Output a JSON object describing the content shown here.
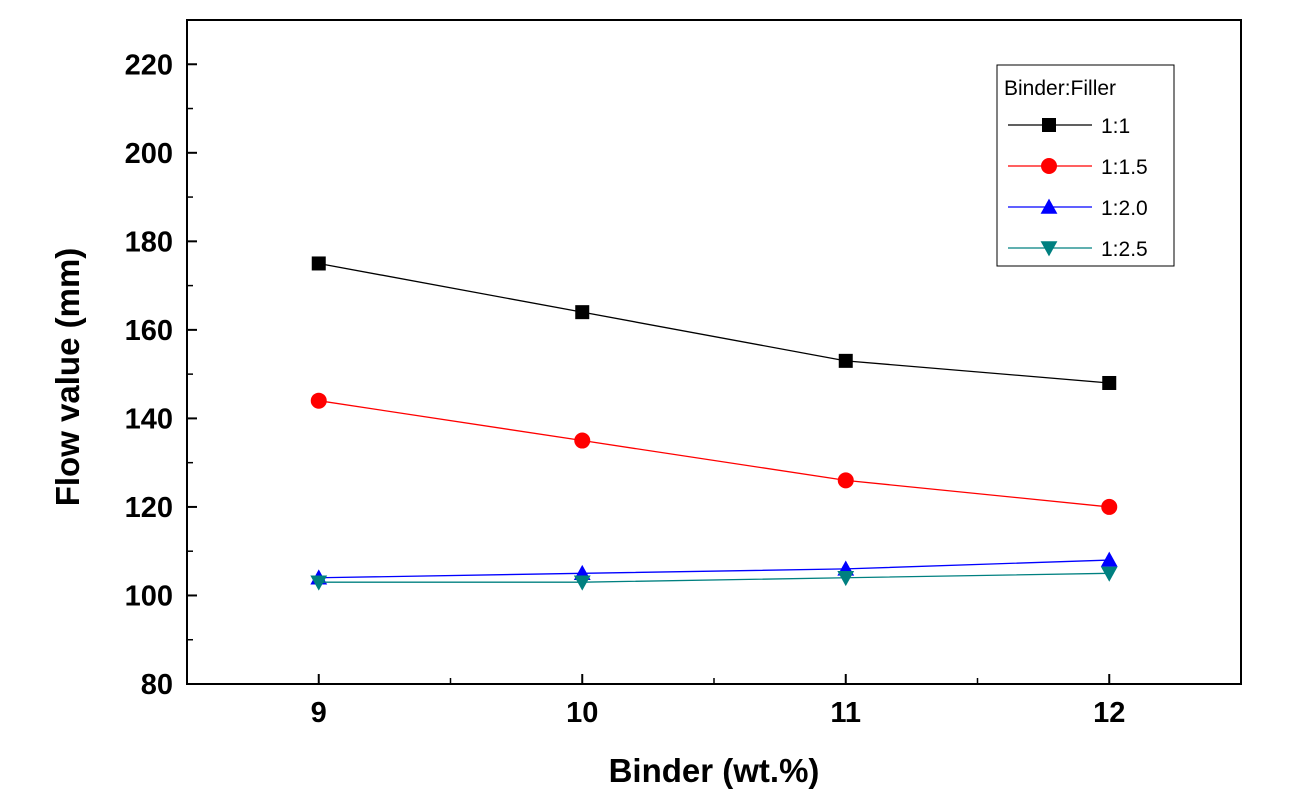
{
  "chart_data": {
    "type": "line",
    "title": "",
    "xlabel": "Binder (wt.%)",
    "ylabel": "Flow value (mm)",
    "x": [
      9,
      10,
      11,
      12
    ],
    "xlim": [
      8.5,
      12.5
    ],
    "ylim": [
      80,
      230
    ],
    "xticks": [
      9,
      10,
      11,
      12
    ],
    "yticks": [
      80,
      100,
      120,
      140,
      160,
      180,
      200,
      220
    ],
    "grid": false,
    "legend": {
      "title": "Binder:Filler",
      "position": "top-right"
    },
    "series": [
      {
        "name": "1:1",
        "marker": "square",
        "color": "#000000",
        "values": [
          175,
          164,
          153,
          148
        ]
      },
      {
        "name": "1:1.5",
        "marker": "circle",
        "color": "#ff0000",
        "values": [
          144,
          135,
          126,
          120
        ]
      },
      {
        "name": "1:2.0",
        "marker": "triangle-up",
        "color": "#0000ff",
        "values": [
          104,
          105,
          106,
          108
        ]
      },
      {
        "name": "1:2.5",
        "marker": "triangle-down",
        "color": "#008080",
        "values": [
          103,
          103,
          104,
          105
        ]
      }
    ]
  }
}
